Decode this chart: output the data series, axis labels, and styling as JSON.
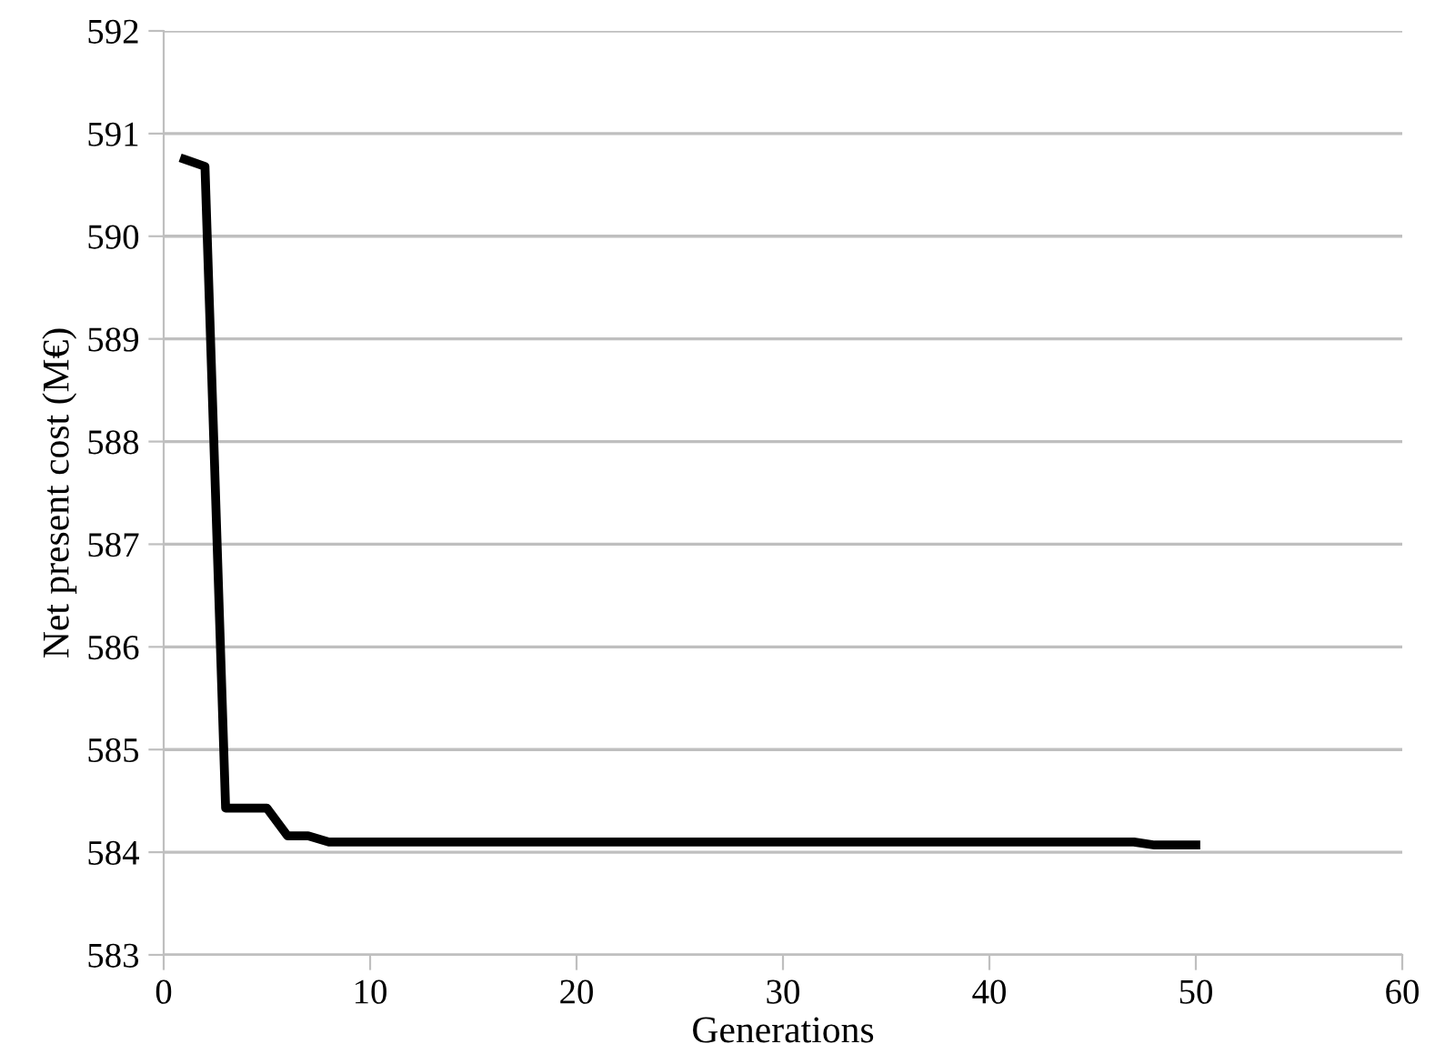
{
  "chart_data": {
    "type": "line",
    "xlabel": "Generations",
    "ylabel": "Net present cost (M€)",
    "series": [
      {
        "color": "#000000",
        "x": [
          1,
          2,
          3,
          4,
          5,
          6,
          7,
          8,
          47,
          48,
          50
        ],
        "values": [
          590.75,
          590.68,
          584.43,
          584.43,
          584.43,
          584.16,
          584.16,
          584.1,
          584.1,
          584.07,
          584.07
        ]
      }
    ],
    "xlim": [
      0,
      60
    ],
    "xticks": [
      0,
      10,
      20,
      30,
      40,
      50,
      60
    ],
    "ylim": [
      583,
      592
    ],
    "yticks": [
      583,
      584,
      585,
      586,
      587,
      588,
      589,
      590,
      591,
      592
    ],
    "grid": "y",
    "legend": false,
    "marker": "none",
    "line_style": "solid"
  }
}
